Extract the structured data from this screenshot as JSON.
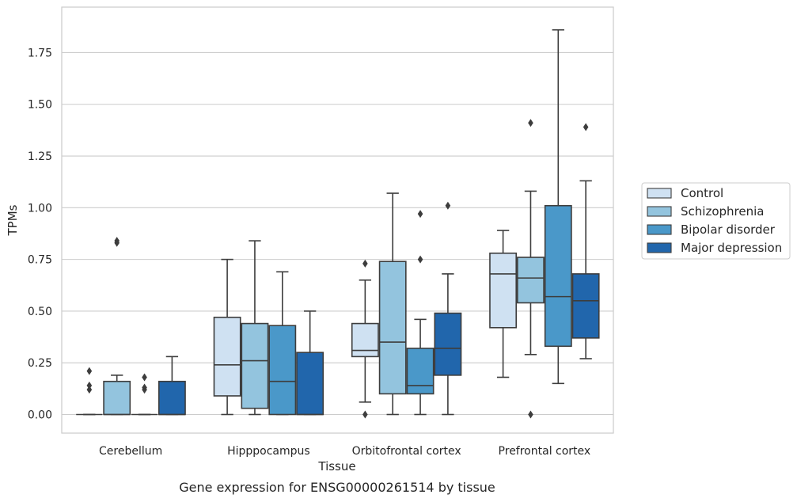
{
  "chart_data": {
    "type": "box",
    "title": "",
    "caption": "Gene expression for ENSG00000261514 by tissue",
    "xlabel": "Tissue",
    "ylabel": "TPMs",
    "ylim": [
      -0.09,
      1.97
    ],
    "yticks": [
      0.0,
      0.25,
      0.5,
      0.75,
      1.0,
      1.25,
      1.5,
      1.75
    ],
    "ytick_labels": [
      "0.00",
      "0.25",
      "0.50",
      "0.75",
      "1.00",
      "1.25",
      "1.50",
      "1.75"
    ],
    "grid": "horizontal",
    "legend_position": "right",
    "categories": [
      "Cerebellum",
      "Hipppocampus",
      "Orbitofrontal cortex",
      "Prefrontal cortex"
    ],
    "series": [
      {
        "name": "Control",
        "color": "#cfe1f2",
        "boxes": [
          {
            "whislo": 0.0,
            "q1": 0.0,
            "med": 0.0,
            "q3": 0.0,
            "whishi": 0.0,
            "fliers": [
              0.21,
              0.14,
              0.12
            ]
          },
          {
            "whislo": 0.0,
            "q1": 0.09,
            "med": 0.24,
            "q3": 0.47,
            "whishi": 0.75,
            "fliers": []
          },
          {
            "whislo": 0.06,
            "q1": 0.28,
            "med": 0.31,
            "q3": 0.44,
            "whishi": 0.65,
            "fliers": [
              0.73,
              0.0
            ]
          },
          {
            "whislo": 0.18,
            "q1": 0.42,
            "med": 0.68,
            "q3": 0.78,
            "whishi": 0.89,
            "fliers": []
          }
        ]
      },
      {
        "name": "Schizophrenia",
        "color": "#93c4de",
        "boxes": [
          {
            "whislo": 0.0,
            "q1": 0.0,
            "med": 0.0,
            "q3": 0.16,
            "whishi": 0.19,
            "fliers": [
              0.84,
              0.83
            ]
          },
          {
            "whislo": 0.0,
            "q1": 0.03,
            "med": 0.26,
            "q3": 0.44,
            "whishi": 0.84,
            "fliers": []
          },
          {
            "whislo": 0.0,
            "q1": 0.1,
            "med": 0.35,
            "q3": 0.74,
            "whishi": 1.07,
            "fliers": []
          },
          {
            "whislo": 0.29,
            "q1": 0.54,
            "med": 0.66,
            "q3": 0.76,
            "whishi": 1.08,
            "fliers": [
              1.41,
              0.0
            ]
          }
        ]
      },
      {
        "name": "Bipolar disorder",
        "color": "#4a98c9",
        "boxes": [
          {
            "whislo": 0.0,
            "q1": 0.0,
            "med": 0.0,
            "q3": 0.0,
            "whishi": 0.0,
            "fliers": [
              0.18,
              0.13,
              0.12
            ]
          },
          {
            "whislo": 0.0,
            "q1": 0.0,
            "med": 0.16,
            "q3": 0.43,
            "whishi": 0.69,
            "fliers": []
          },
          {
            "whislo": 0.0,
            "q1": 0.1,
            "med": 0.14,
            "q3": 0.32,
            "whishi": 0.46,
            "fliers": [
              0.97,
              0.75
            ]
          },
          {
            "whislo": 0.15,
            "q1": 0.33,
            "med": 0.57,
            "q3": 1.01,
            "whishi": 1.86,
            "fliers": []
          }
        ]
      },
      {
        "name": "Major depression",
        "color": "#2166ac",
        "boxes": [
          {
            "whislo": 0.0,
            "q1": 0.0,
            "med": 0.0,
            "q3": 0.16,
            "whishi": 0.28,
            "fliers": []
          },
          {
            "whislo": 0.0,
            "q1": 0.0,
            "med": 0.0,
            "q3": 0.3,
            "whishi": 0.5,
            "fliers": []
          },
          {
            "whislo": 0.0,
            "q1": 0.19,
            "med": 0.32,
            "q3": 0.49,
            "whishi": 0.68,
            "fliers": [
              1.01
            ]
          },
          {
            "whislo": 0.27,
            "q1": 0.37,
            "med": 0.55,
            "q3": 0.68,
            "whishi": 1.13,
            "fliers": [
              1.39
            ]
          }
        ]
      }
    ]
  }
}
